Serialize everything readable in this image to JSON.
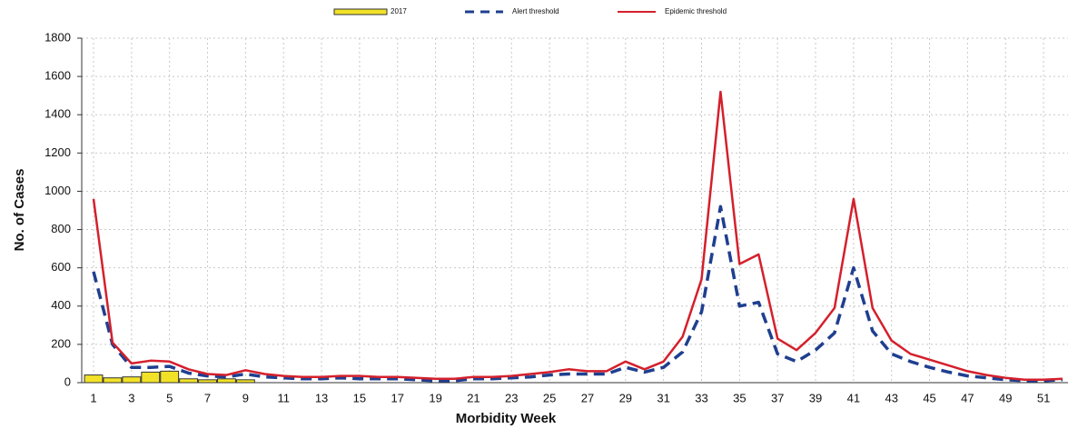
{
  "chart_data": {
    "type": "bar-line",
    "x_label": "Morbidity Week",
    "y_label": "No. of Cases",
    "categories": [
      "1",
      null,
      "3",
      null,
      "5",
      null,
      "7",
      null,
      "9",
      null,
      "11",
      null,
      "13",
      null,
      "15",
      null,
      "17",
      null,
      "19",
      null,
      "21",
      null,
      "23",
      null,
      "25",
      null,
      "27",
      null,
      "29",
      null,
      "31",
      null,
      "33",
      null,
      "35",
      null,
      "37",
      null,
      "39",
      null,
      "41",
      null,
      "43",
      null,
      "45",
      null,
      "47",
      null,
      "49",
      null,
      "51",
      null
    ],
    "ylim": [
      0,
      1800
    ],
    "yticks": [
      0,
      200,
      400,
      600,
      800,
      1000,
      1200,
      1400,
      1600,
      1800
    ],
    "grid": true,
    "series": [
      {
        "name": "2017",
        "kind": "bar",
        "color": "#f2e227",
        "values": [
          40,
          25,
          30,
          55,
          60,
          20,
          15,
          20,
          15,
          null,
          null,
          null,
          null,
          null,
          null,
          null,
          null,
          null,
          null,
          null,
          null,
          null,
          null,
          null,
          null,
          null,
          null,
          null,
          null,
          null,
          null,
          null,
          null,
          null,
          null,
          null,
          null,
          null,
          null,
          null,
          null,
          null,
          null,
          null,
          null,
          null,
          null,
          null,
          null,
          null,
          null,
          null
        ]
      },
      {
        "name": "Alert threshold",
        "kind": "dashed-line",
        "color": "#1f3f8f",
        "values": [
          580,
          200,
          80,
          80,
          85,
          50,
          35,
          30,
          45,
          30,
          25,
          20,
          20,
          25,
          20,
          20,
          20,
          15,
          10,
          10,
          20,
          20,
          25,
          30,
          40,
          45,
          45,
          45,
          80,
          55,
          80,
          160,
          370,
          920,
          400,
          420,
          150,
          110,
          170,
          260,
          600,
          270,
          150,
          110,
          80,
          55,
          35,
          25,
          15,
          10,
          10,
          15
        ]
      },
      {
        "name": "Epidemic threshold",
        "kind": "line",
        "color": "#d4202c",
        "values": [
          960,
          210,
          100,
          115,
          110,
          70,
          45,
          40,
          65,
          45,
          35,
          30,
          30,
          35,
          35,
          30,
          30,
          25,
          20,
          20,
          30,
          30,
          35,
          45,
          55,
          70,
          60,
          60,
          110,
          70,
          110,
          240,
          540,
          1520,
          620,
          670,
          230,
          170,
          260,
          390,
          960,
          390,
          220,
          150,
          120,
          90,
          60,
          40,
          25,
          15,
          15,
          20
        ]
      }
    ]
  }
}
